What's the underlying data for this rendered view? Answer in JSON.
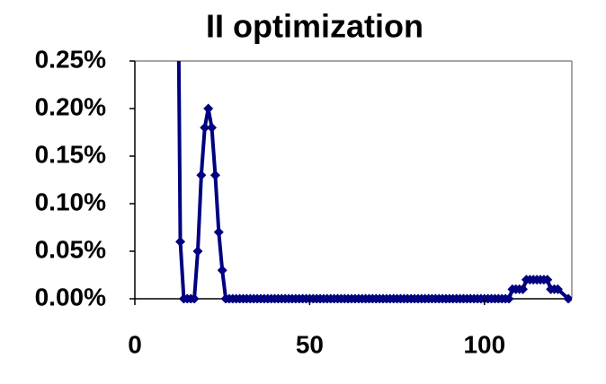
{
  "chart_data": {
    "type": "line",
    "title": "II optimization",
    "x": [
      12,
      13,
      14,
      15,
      16,
      17,
      18,
      19,
      20,
      21,
      22,
      23,
      24,
      25,
      26,
      27,
      28,
      29,
      30,
      31,
      32,
      33,
      34,
      35,
      36,
      37,
      38,
      39,
      40,
      41,
      42,
      43,
      44,
      45,
      46,
      47,
      48,
      49,
      50,
      51,
      52,
      53,
      54,
      55,
      56,
      57,
      58,
      59,
      60,
      61,
      62,
      63,
      64,
      65,
      66,
      67,
      68,
      69,
      70,
      71,
      72,
      73,
      74,
      75,
      76,
      77,
      78,
      79,
      80,
      81,
      82,
      83,
      84,
      85,
      86,
      87,
      88,
      89,
      90,
      91,
      92,
      93,
      94,
      95,
      96,
      97,
      98,
      99,
      100,
      101,
      102,
      103,
      104,
      105,
      106,
      107,
      108,
      109,
      110,
      111,
      112,
      113,
      114,
      115,
      116,
      117,
      118,
      119,
      120,
      121,
      124
    ],
    "series": [
      {
        "color": "#000080",
        "values": [
          0.5,
          0.06,
          0,
          0,
          0,
          0,
          0.05,
          0.13,
          0.18,
          0.2,
          0.18,
          0.13,
          0.07,
          0.03,
          0,
          0,
          0,
          0,
          0,
          0,
          0,
          0,
          0,
          0,
          0,
          0,
          0,
          0,
          0,
          0,
          0,
          0,
          0,
          0,
          0,
          0,
          0,
          0,
          0,
          0,
          0,
          0,
          0,
          0,
          0,
          0,
          0,
          0,
          0,
          0,
          0,
          0,
          0,
          0,
          0,
          0,
          0,
          0,
          0,
          0,
          0,
          0,
          0,
          0,
          0,
          0,
          0,
          0,
          0,
          0,
          0,
          0,
          0,
          0,
          0,
          0,
          0,
          0,
          0,
          0,
          0,
          0,
          0,
          0,
          0,
          0,
          0,
          0,
          0,
          0,
          0,
          0,
          0,
          0,
          0,
          0,
          0.01,
          0.01,
          0.01,
          0.01,
          0.02,
          0.02,
          0.02,
          0.02,
          0.02,
          0.02,
          0.02,
          0.01,
          0.01,
          0.01,
          0
        ]
      }
    ],
    "xlim": [
      0,
      125
    ],
    "xticks": [
      0,
      50,
      100
    ],
    "ylim": [
      0,
      0.25
    ],
    "yticks": [
      {
        "value": 0,
        "label": "0.00%"
      },
      {
        "value": 0.05,
        "label": "0.05%"
      },
      {
        "value": 0.1,
        "label": "0.10%"
      },
      {
        "value": 0.15,
        "label": "0.15%"
      },
      {
        "value": 0.2,
        "label": "0.20%"
      },
      {
        "value": 0.25,
        "label": "0.25%"
      }
    ]
  }
}
